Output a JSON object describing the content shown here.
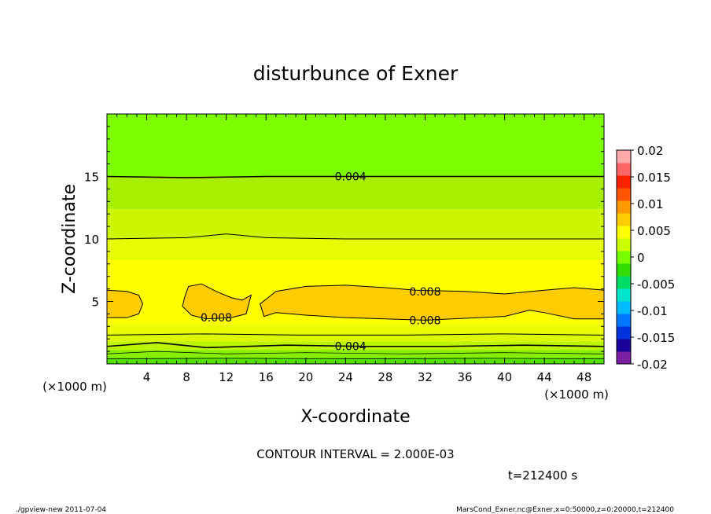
{
  "chart_data": {
    "type": "heatmap",
    "title": "disturbunce of Exner",
    "xlabel": "X-coordinate",
    "ylabel": "Z-coordinate",
    "x_unit": "(×1000 m)",
    "x_unit_right": "(×1000 m)",
    "xlim": [
      0,
      50
    ],
    "ylim": [
      0,
      20
    ],
    "x_ticks": [
      "4",
      "8",
      "12",
      "16",
      "20",
      "24",
      "28",
      "32",
      "36",
      "40",
      "44",
      "48"
    ],
    "y_ticks": [
      "5",
      "10",
      "15"
    ],
    "contour_interval_text": "CONTOUR INTERVAL = 2.000E-03",
    "time_text": "t=212400 s",
    "colorbar": {
      "range": [
        -0.02,
        0.02
      ],
      "tick_labels": [
        "0.02",
        "0.015",
        "0.01",
        "0.005",
        "0",
        "-0.005",
        "-0.01",
        "-0.015",
        "-0.02"
      ],
      "colors": [
        "#7b1fa2",
        "#1a0099",
        "#0033dd",
        "#0077ff",
        "#00bbff",
        "#00e5cc",
        "#00dd66",
        "#33dd00",
        "#77ff00",
        "#ccff00",
        "#ffff00",
        "#ffcc00",
        "#ff9900",
        "#ff5500",
        "#ff2200",
        "#ff6666",
        "#ffaaaa"
      ]
    },
    "contour_labels": [
      {
        "text": "0.004",
        "x": 24.5,
        "z": 15.0
      },
      {
        "text": "0.008",
        "x": 32.0,
        "z": 5.8
      },
      {
        "text": "0.008",
        "x": 11.0,
        "z": 3.7
      },
      {
        "text": "0.008",
        "x": 32.0,
        "z": 3.5
      },
      {
        "text": "0.004",
        "x": 24.5,
        "z": 1.4
      }
    ]
  },
  "footer": {
    "left": "./gpview-new   2011-07-04",
    "right": "MarsCond_Exner.nc@Exner,x=0:50000,z=0:20000,t=212400"
  }
}
